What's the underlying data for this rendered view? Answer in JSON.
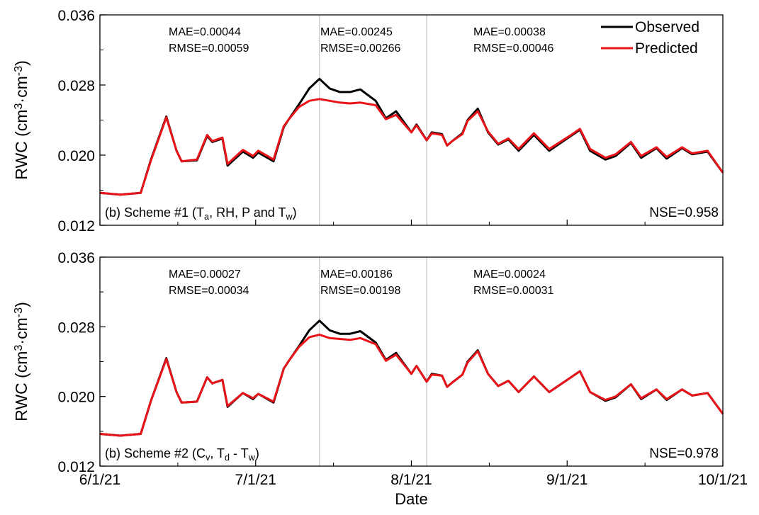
{
  "chart_data": [
    {
      "type": "line",
      "panel_label": [
        "(b) Scheme #1 (T",
        "a",
        ", RH, P and T",
        "w",
        ")"
      ],
      "ylabel": [
        "RWC (cm",
        "3",
        "·cm",
        "-3",
        ")"
      ],
      "ylim": [
        0.012,
        0.036
      ],
      "yticks": [
        "0.036",
        "0.028",
        "0.020",
        "0.012"
      ],
      "xlim": [
        "2021-06-01",
        "2021-10-01"
      ],
      "xtick_labels": [
        "6/1/21",
        "7/1/21",
        "8/1/21",
        "9/1/21",
        "10/1/21"
      ],
      "period_dividers": [
        "2021-07-14",
        "2021-08-04"
      ],
      "period_stats": [
        {
          "mae": "MAE=0.00044",
          "rmse": "RMSE=0.00059"
        },
        {
          "mae": "MAE=0.00245",
          "rmse": "RMSE=0.00266"
        },
        {
          "mae": "MAE=0.00038",
          "rmse": "RMSE=0.00046"
        }
      ],
      "nse": "NSE=0.958",
      "series": [
        {
          "name": "Observed",
          "color": "#000000",
          "x": [
            "2021-06-01",
            "2021-06-05",
            "2021-06-09",
            "2021-06-11",
            "2021-06-14",
            "2021-06-16",
            "2021-06-17",
            "2021-06-20",
            "2021-06-22",
            "2021-06-23",
            "2021-06-25",
            "2021-06-26",
            "2021-06-29",
            "2021-07-01",
            "2021-07-02",
            "2021-07-05",
            "2021-07-07",
            "2021-07-08",
            "2021-07-10",
            "2021-07-12",
            "2021-07-14",
            "2021-07-16",
            "2021-07-18",
            "2021-07-20",
            "2021-07-22",
            "2021-07-25",
            "2021-07-27",
            "2021-07-29",
            "2021-08-01",
            "2021-08-02",
            "2021-08-04",
            "2021-08-05",
            "2021-08-07",
            "2021-08-08",
            "2021-08-09",
            "2021-08-11",
            "2021-08-12",
            "2021-08-14",
            "2021-08-16",
            "2021-08-18",
            "2021-08-20",
            "2021-08-22",
            "2021-08-25",
            "2021-08-28",
            "2021-09-01",
            "2021-09-03",
            "2021-09-05",
            "2021-09-08",
            "2021-09-10",
            "2021-09-13",
            "2021-09-15",
            "2021-09-18",
            "2021-09-20",
            "2021-09-23",
            "2021-09-25",
            "2021-09-28",
            "2021-10-01"
          ],
          "y": [
            0.0157,
            0.0155,
            0.0157,
            0.0195,
            0.0244,
            0.0205,
            0.0193,
            0.0194,
            0.0222,
            0.0215,
            0.0219,
            0.0188,
            0.0204,
            0.0197,
            0.0203,
            0.0193,
            0.0232,
            0.0241,
            0.0258,
            0.0276,
            0.0287,
            0.0276,
            0.0272,
            0.0272,
            0.0275,
            0.0262,
            0.0242,
            0.025,
            0.0226,
            0.0235,
            0.0217,
            0.0226,
            0.0224,
            0.0211,
            0.0216,
            0.0225,
            0.024,
            0.0253,
            0.0226,
            0.0212,
            0.0218,
            0.0205,
            0.0223,
            0.0205,
            0.0221,
            0.0229,
            0.0205,
            0.0195,
            0.0199,
            0.0214,
            0.0197,
            0.0208,
            0.0196,
            0.0208,
            0.0201,
            0.0204,
            0.018
          ]
        },
        {
          "name": "Predicted",
          "color": "#e8141a",
          "x": [
            "2021-06-01",
            "2021-06-05",
            "2021-06-09",
            "2021-06-11",
            "2021-06-14",
            "2021-06-16",
            "2021-06-17",
            "2021-06-20",
            "2021-06-22",
            "2021-06-23",
            "2021-06-25",
            "2021-06-26",
            "2021-06-29",
            "2021-07-01",
            "2021-07-02",
            "2021-07-05",
            "2021-07-07",
            "2021-07-08",
            "2021-07-10",
            "2021-07-12",
            "2021-07-14",
            "2021-07-16",
            "2021-07-18",
            "2021-07-20",
            "2021-07-22",
            "2021-07-25",
            "2021-07-27",
            "2021-07-29",
            "2021-08-01",
            "2021-08-02",
            "2021-08-04",
            "2021-08-05",
            "2021-08-07",
            "2021-08-08",
            "2021-08-09",
            "2021-08-11",
            "2021-08-12",
            "2021-08-14",
            "2021-08-16",
            "2021-08-18",
            "2021-08-20",
            "2021-08-22",
            "2021-08-25",
            "2021-08-28",
            "2021-09-01",
            "2021-09-03",
            "2021-09-05",
            "2021-09-08",
            "2021-09-10",
            "2021-09-13",
            "2021-09-15",
            "2021-09-18",
            "2021-09-20",
            "2021-09-23",
            "2021-09-25",
            "2021-09-28",
            "2021-10-01"
          ],
          "y": [
            0.0157,
            0.0155,
            0.0157,
            0.0194,
            0.0243,
            0.0205,
            0.0193,
            0.0195,
            0.0223,
            0.0216,
            0.022,
            0.019,
            0.0206,
            0.0199,
            0.0205,
            0.0195,
            0.0233,
            0.0241,
            0.0255,
            0.0262,
            0.0264,
            0.0262,
            0.026,
            0.0259,
            0.026,
            0.0257,
            0.0241,
            0.0246,
            0.0226,
            0.0234,
            0.0217,
            0.0225,
            0.0223,
            0.0211,
            0.0216,
            0.0224,
            0.0239,
            0.025,
            0.0227,
            0.0213,
            0.0219,
            0.0207,
            0.0225,
            0.0207,
            0.0222,
            0.023,
            0.0207,
            0.0197,
            0.0201,
            0.0215,
            0.0199,
            0.0209,
            0.0198,
            0.0209,
            0.0202,
            0.0205,
            0.018
          ]
        }
      ]
    },
    {
      "type": "line",
      "panel_label": [
        "(b) Scheme #2 (C",
        "v",
        ", T",
        "d",
        " - T",
        "w",
        ")"
      ],
      "ylabel": [
        "RWC (cm",
        "3",
        "·cm",
        "-3",
        ")"
      ],
      "ylim": [
        0.012,
        0.036
      ],
      "yticks": [
        "0.036",
        "0.028",
        "0.020",
        "0.012"
      ],
      "xlim": [
        "2021-06-01",
        "2021-10-01"
      ],
      "xlabel": "Date",
      "xtick_labels": [
        "6/1/21",
        "7/1/21",
        "8/1/21",
        "9/1/21",
        "10/1/21"
      ],
      "period_dividers": [
        "2021-07-14",
        "2021-08-04"
      ],
      "period_stats": [
        {
          "mae": "MAE=0.00027",
          "rmse": "RMSE=0.00034"
        },
        {
          "mae": "MAE=0.00186",
          "rmse": "RMSE=0.00198"
        },
        {
          "mae": "MAE=0.00024",
          "rmse": "RMSE=0.00031"
        }
      ],
      "nse": "NSE=0.978",
      "series": [
        {
          "name": "Observed",
          "color": "#000000",
          "x": [
            "2021-06-01",
            "2021-06-05",
            "2021-06-09",
            "2021-06-11",
            "2021-06-14",
            "2021-06-16",
            "2021-06-17",
            "2021-06-20",
            "2021-06-22",
            "2021-06-23",
            "2021-06-25",
            "2021-06-26",
            "2021-06-29",
            "2021-07-01",
            "2021-07-02",
            "2021-07-05",
            "2021-07-07",
            "2021-07-08",
            "2021-07-10",
            "2021-07-12",
            "2021-07-14",
            "2021-07-16",
            "2021-07-18",
            "2021-07-20",
            "2021-07-22",
            "2021-07-25",
            "2021-07-27",
            "2021-07-29",
            "2021-08-01",
            "2021-08-02",
            "2021-08-04",
            "2021-08-05",
            "2021-08-07",
            "2021-08-08",
            "2021-08-09",
            "2021-08-11",
            "2021-08-12",
            "2021-08-14",
            "2021-08-16",
            "2021-08-18",
            "2021-08-20",
            "2021-08-22",
            "2021-08-25",
            "2021-08-28",
            "2021-09-01",
            "2021-09-03",
            "2021-09-05",
            "2021-09-08",
            "2021-09-10",
            "2021-09-13",
            "2021-09-15",
            "2021-09-18",
            "2021-09-20",
            "2021-09-23",
            "2021-09-25",
            "2021-09-28",
            "2021-10-01"
          ],
          "y": [
            0.0157,
            0.0155,
            0.0157,
            0.0195,
            0.0244,
            0.0205,
            0.0193,
            0.0194,
            0.0222,
            0.0215,
            0.0219,
            0.0188,
            0.0204,
            0.0197,
            0.0203,
            0.0193,
            0.0232,
            0.0241,
            0.0258,
            0.0276,
            0.0287,
            0.0276,
            0.0272,
            0.0272,
            0.0275,
            0.0262,
            0.0242,
            0.025,
            0.0226,
            0.0235,
            0.0217,
            0.0226,
            0.0224,
            0.0211,
            0.0216,
            0.0225,
            0.024,
            0.0253,
            0.0226,
            0.0212,
            0.0218,
            0.0205,
            0.0223,
            0.0205,
            0.0221,
            0.0229,
            0.0205,
            0.0195,
            0.0199,
            0.0214,
            0.0197,
            0.0208,
            0.0196,
            0.0208,
            0.0201,
            0.0204,
            0.018
          ]
        },
        {
          "name": "Predicted",
          "color": "#e8141a",
          "x": [
            "2021-06-01",
            "2021-06-05",
            "2021-06-09",
            "2021-06-11",
            "2021-06-14",
            "2021-06-16",
            "2021-06-17",
            "2021-06-20",
            "2021-06-22",
            "2021-06-23",
            "2021-06-25",
            "2021-06-26",
            "2021-06-29",
            "2021-07-01",
            "2021-07-02",
            "2021-07-05",
            "2021-07-07",
            "2021-07-08",
            "2021-07-10",
            "2021-07-12",
            "2021-07-14",
            "2021-07-16",
            "2021-07-18",
            "2021-07-20",
            "2021-07-22",
            "2021-07-25",
            "2021-07-27",
            "2021-07-29",
            "2021-08-01",
            "2021-08-02",
            "2021-08-04",
            "2021-08-05",
            "2021-08-07",
            "2021-08-08",
            "2021-08-09",
            "2021-08-11",
            "2021-08-12",
            "2021-08-14",
            "2021-08-16",
            "2021-08-18",
            "2021-08-20",
            "2021-08-22",
            "2021-08-25",
            "2021-08-28",
            "2021-09-01",
            "2021-09-03",
            "2021-09-05",
            "2021-09-08",
            "2021-09-10",
            "2021-09-13",
            "2021-09-15",
            "2021-09-18",
            "2021-09-20",
            "2021-09-23",
            "2021-09-25",
            "2021-09-28",
            "2021-10-01"
          ],
          "y": [
            0.0157,
            0.0155,
            0.0157,
            0.0195,
            0.0243,
            0.0205,
            0.0193,
            0.0194,
            0.0222,
            0.0215,
            0.0219,
            0.0189,
            0.0204,
            0.0198,
            0.0203,
            0.0194,
            0.0232,
            0.0241,
            0.0257,
            0.0268,
            0.0271,
            0.0267,
            0.0266,
            0.0265,
            0.0267,
            0.026,
            0.0241,
            0.0248,
            0.0226,
            0.0235,
            0.0217,
            0.0225,
            0.0224,
            0.0211,
            0.0216,
            0.0225,
            0.0239,
            0.0252,
            0.0226,
            0.0212,
            0.0218,
            0.0205,
            0.0223,
            0.0205,
            0.0221,
            0.0229,
            0.0205,
            0.0196,
            0.02,
            0.0214,
            0.0198,
            0.0208,
            0.0197,
            0.0208,
            0.0201,
            0.0204,
            0.018
          ]
        }
      ]
    }
  ],
  "legend": {
    "position": "top-right",
    "entries": [
      {
        "label": "Observed",
        "color": "#000000"
      },
      {
        "label": "Predicted",
        "color": "#e8141a"
      }
    ]
  }
}
